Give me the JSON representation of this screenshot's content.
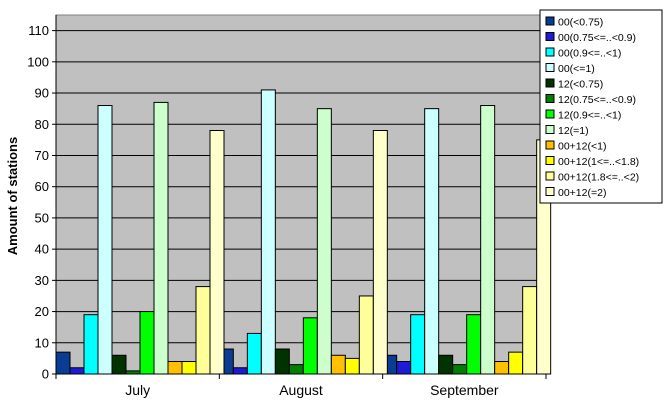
{
  "chart_data": {
    "type": "bar",
    "title": "",
    "xlabel": "",
    "ylabel": "Amount of stations",
    "ylim": [
      0,
      115
    ],
    "yticks": [
      0,
      10,
      20,
      30,
      40,
      50,
      60,
      70,
      80,
      90,
      100,
      110
    ],
    "grid": true,
    "legend_position": "top-right",
    "plot_background": "#c0c0c0",
    "categories": [
      "July",
      "August",
      "September"
    ],
    "series": [
      {
        "name": "00(<0.75)",
        "color": "#0a3d91",
        "values": [
          7,
          8,
          6
        ]
      },
      {
        "name": "00(0.75<=..<0.9)",
        "color": "#1c1cd6",
        "values": [
          2,
          2,
          4
        ]
      },
      {
        "name": "00(0.9<=..<1)",
        "color": "#00ffff",
        "values": [
          19,
          13,
          19
        ]
      },
      {
        "name": "00(<=1)",
        "color": "#ccffff",
        "values": [
          86,
          91,
          85
        ]
      },
      {
        "name": "12(<0.75)",
        "color": "#003300",
        "values": [
          6,
          8,
          6
        ]
      },
      {
        "name": "12(0.75<=..<0.9)",
        "color": "#008000",
        "values": [
          1,
          3,
          3
        ]
      },
      {
        "name": "12(0.9<=..<1)",
        "color": "#00ff00",
        "values": [
          20,
          18,
          19
        ]
      },
      {
        "name": "12(=1)",
        "color": "#ccffcc",
        "values": [
          87,
          85,
          86
        ]
      },
      {
        "name": "00+12(<1)",
        "color": "#ffc000",
        "values": [
          4,
          6,
          4
        ]
      },
      {
        "name": "00+12(1<=..<1.8)",
        "color": "#ffff00",
        "values": [
          4,
          5,
          7
        ]
      },
      {
        "name": "00+12(1.8<=..<2)",
        "color": "#ffff99",
        "values": [
          28,
          25,
          28
        ]
      },
      {
        "name": "00+12(=2)",
        "color": "#ffffcc",
        "values": [
          78,
          78,
          75
        ]
      }
    ]
  }
}
